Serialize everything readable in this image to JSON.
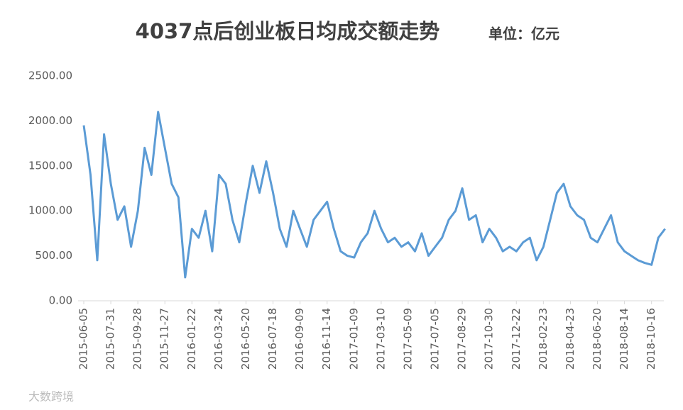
{
  "chart_data": {
    "type": "line",
    "title": "4037点后创业板日均成交额走势",
    "subtitle": "单位：亿元",
    "watermark": "大数跨境",
    "categories": [
      "2015-06-05",
      null,
      null,
      null,
      "2015-07-31",
      null,
      null,
      null,
      "2015-09-28",
      null,
      null,
      null,
      "2015-11-27",
      null,
      null,
      null,
      "2016-01-22",
      null,
      null,
      null,
      "2016-03-24",
      null,
      null,
      null,
      "2016-05-20",
      null,
      null,
      null,
      "2016-07-18",
      null,
      null,
      null,
      "2016-09-09",
      null,
      null,
      null,
      "2016-11-14",
      null,
      null,
      null,
      "2017-01-09",
      null,
      null,
      null,
      "2017-03-10",
      null,
      null,
      null,
      "2017-05-09",
      null,
      null,
      null,
      "2017-07-05",
      null,
      null,
      null,
      "2017-08-29",
      null,
      null,
      null,
      "2017-10-30",
      null,
      null,
      null,
      "2017-12-22",
      null,
      null,
      null,
      "2018-02-23",
      null,
      null,
      null,
      "2018-04-23",
      null,
      null,
      null,
      "2018-06-20",
      null,
      null,
      null,
      "2018-08-14",
      null,
      null,
      null,
      "2018-10-16",
      null,
      null
    ],
    "values": [
      1950,
      1400,
      450,
      1850,
      1300,
      900,
      1050,
      600,
      1000,
      1700,
      1400,
      2100,
      1700,
      1300,
      1150,
      260,
      800,
      700,
      1000,
      550,
      1400,
      1300,
      900,
      650,
      1100,
      1500,
      1200,
      1550,
      1200,
      800,
      600,
      1000,
      800,
      600,
      900,
      1000,
      1100,
      800,
      550,
      500,
      480,
      650,
      750,
      1000,
      800,
      650,
      700,
      600,
      650,
      550,
      750,
      500,
      600,
      700,
      900,
      1000,
      1250,
      900,
      950,
      650,
      800,
      700,
      550,
      600,
      550,
      650,
      700,
      450,
      600,
      900,
      1200,
      1300,
      1050,
      950,
      900,
      700,
      650,
      800,
      950,
      650,
      550,
      500,
      450,
      420,
      400,
      700,
      800
    ],
    "color": "#5b9bd5",
    "ylim": [
      0,
      2500
    ],
    "yticks": [
      {
        "value": 0,
        "label": "0.00"
      },
      {
        "value": 500,
        "label": "500.00"
      },
      {
        "value": 1000,
        "label": "1000.00"
      },
      {
        "value": 1500,
        "label": "1500.00"
      },
      {
        "value": 2000,
        "label": "2000.00"
      },
      {
        "value": 2500,
        "label": "2500.00"
      }
    ],
    "grid": false
  }
}
